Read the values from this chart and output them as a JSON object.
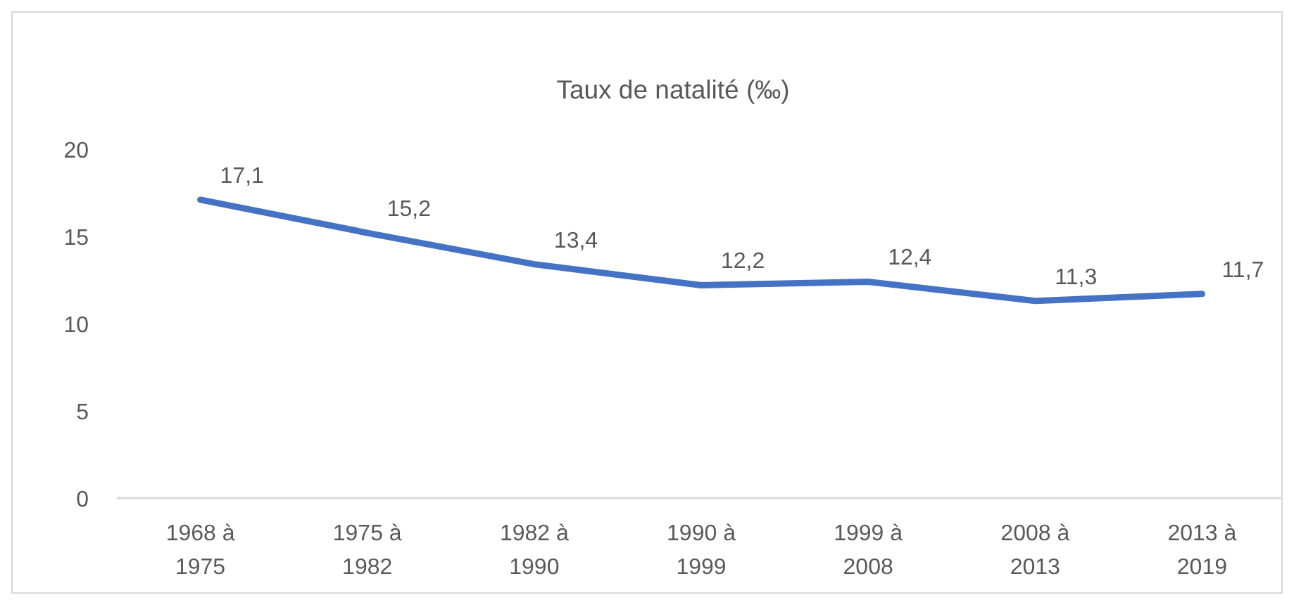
{
  "chart_data": {
    "type": "line",
    "title": "Taux de natalité (‰)",
    "categories": [
      "1968 à 1975",
      "1975 à 1982",
      "1982 à 1990",
      "1990 à 1999",
      "1999 à 2008",
      "2008 à 2013",
      "2013 à 2019"
    ],
    "series": [
      {
        "color": "#4472c4",
        "values": [
          17.1,
          15.2,
          13.4,
          12.2,
          12.4,
          11.3,
          11.7
        ],
        "value_labels": [
          "17,1",
          "15,2",
          "13,4",
          "12,2",
          "12,4",
          "11,3",
          "11,7"
        ]
      }
    ],
    "ylim": [
      0,
      20
    ],
    "yticks": [
      0,
      5,
      10,
      15,
      20
    ],
    "grid": false,
    "marker": "none",
    "line_style": "solid"
  }
}
